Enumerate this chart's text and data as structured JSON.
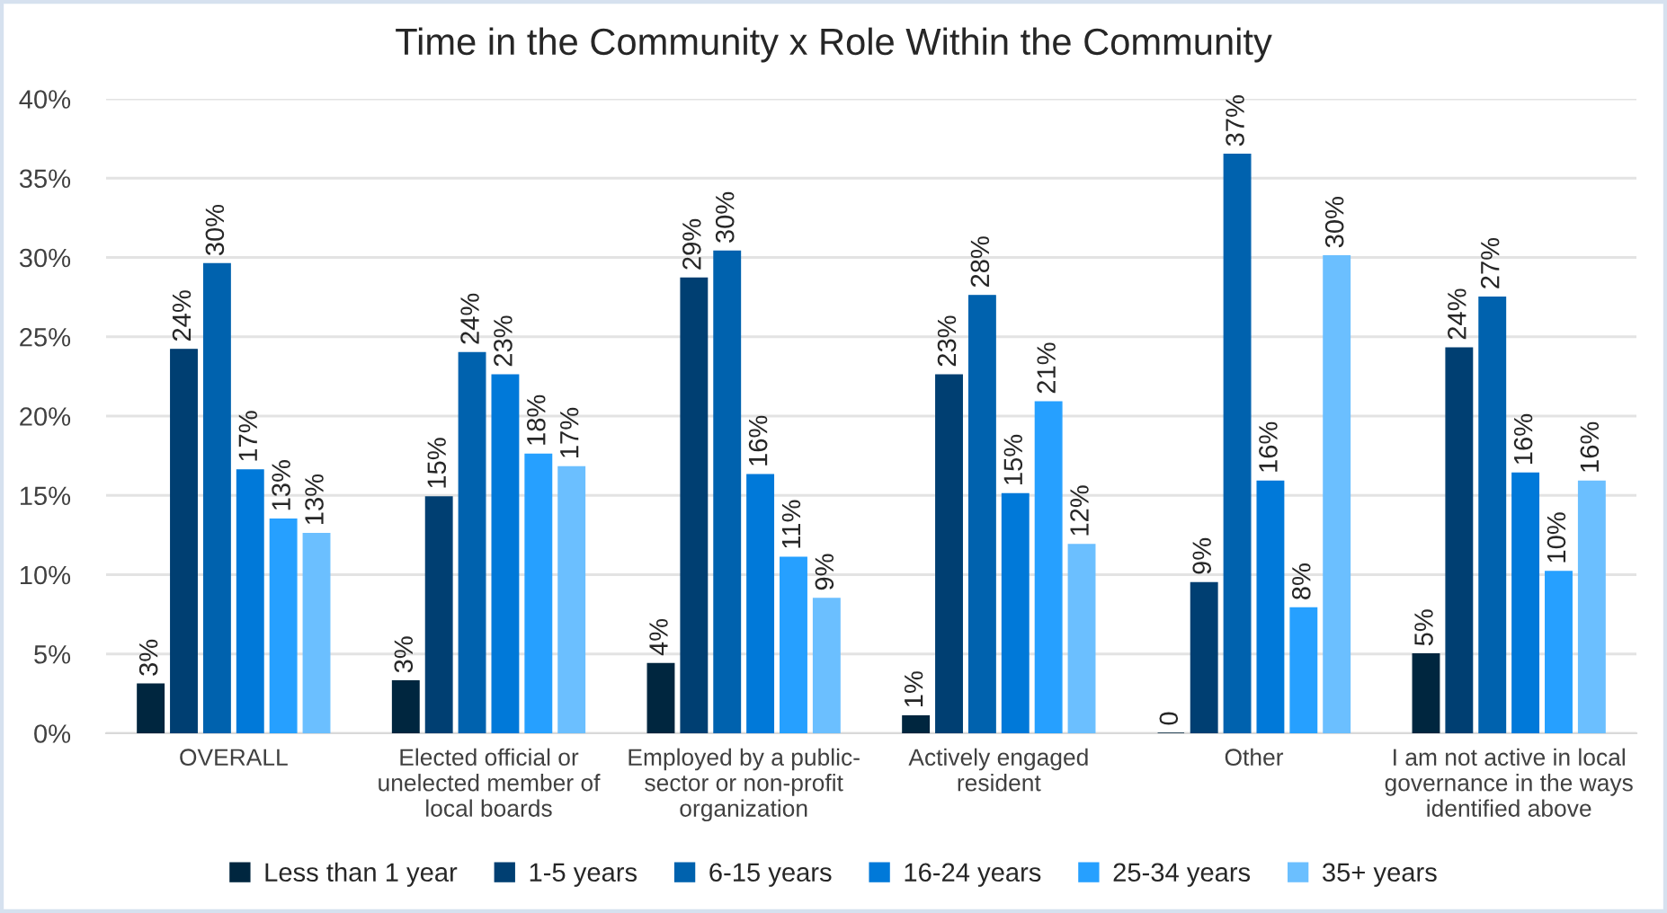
{
  "chart_data": {
    "type": "bar",
    "title": "Time in the Community x Role Within the Community",
    "categories": [
      "OVERALL",
      "Elected official or\nunelected member of\nlocal boards",
      "Employed by a public-\nsector or non-profit\norganization",
      "Actively engaged\nresident",
      "Other",
      "I am not active in local\ngovernance in the ways\nidentified above"
    ],
    "series": [
      {
        "name": "Less than 1 year",
        "color": "#00263f",
        "values": [
          3.1,
          3.3,
          4.4,
          1.1,
          0,
          5.0
        ],
        "value_labels": [
          "3%",
          "3%",
          "4%",
          "1%",
          "0",
          "5%"
        ]
      },
      {
        "name": "1-5 years",
        "color": "#003f72",
        "values": [
          24.2,
          14.9,
          28.7,
          22.6,
          9.5,
          24.3
        ],
        "value_labels": [
          "24%",
          "15%",
          "29%",
          "23%",
          "9%",
          "24%"
        ]
      },
      {
        "name": "6-15 years",
        "color": "#0062ae",
        "values": [
          29.6,
          24.0,
          30.4,
          27.6,
          36.5,
          27.5
        ],
        "value_labels": [
          "30%",
          "24%",
          "30%",
          "28%",
          "37%",
          "27%"
        ]
      },
      {
        "name": "16-24 years",
        "color": "#0079d9",
        "values": [
          16.6,
          22.6,
          16.3,
          15.1,
          15.9,
          16.4
        ],
        "value_labels": [
          "17%",
          "23%",
          "16%",
          "15%",
          "16%",
          "16%"
        ]
      },
      {
        "name": "25-34 years",
        "color": "#26a0ff",
        "values": [
          13.5,
          17.6,
          11.1,
          20.9,
          7.9,
          10.2
        ],
        "value_labels": [
          "13%",
          "18%",
          "11%",
          "21%",
          "8%",
          "10%"
        ]
      },
      {
        "name": "35+ years",
        "color": "#6bbfff",
        "values": [
          12.6,
          16.8,
          8.5,
          11.9,
          30.1,
          15.9
        ],
        "value_labels": [
          "13%",
          "17%",
          "9%",
          "12%",
          "30%",
          "16%"
        ]
      }
    ],
    "ylim": [
      0,
      40
    ],
    "yticks": [
      {
        "value": 0,
        "label": "0%"
      },
      {
        "value": 5,
        "label": "5%"
      },
      {
        "value": 10,
        "label": "10%"
      },
      {
        "value": 15,
        "label": "15%"
      },
      {
        "value": 20,
        "label": "20%"
      },
      {
        "value": 25,
        "label": "25%"
      },
      {
        "value": 30,
        "label": "30%"
      },
      {
        "value": 35,
        "label": "35%"
      },
      {
        "value": 40,
        "label": "40%"
      }
    ],
    "grid": "y",
    "legend": "bottom"
  }
}
